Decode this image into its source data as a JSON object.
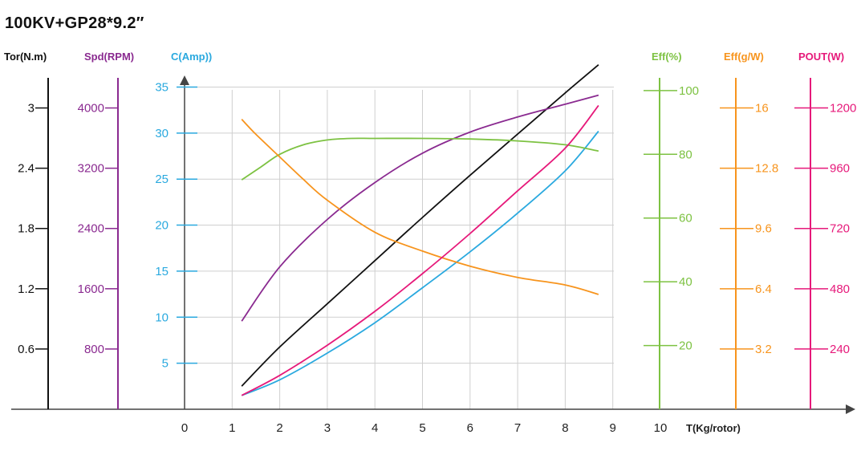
{
  "title": "100KV+GP28*9.2″",
  "chart_data": {
    "type": "line",
    "title": "100KV+GP28*9.2″",
    "xlabel": "T(Kg/rotor)",
    "x_ticks": [
      "0",
      "1",
      "2",
      "3",
      "4",
      "5",
      "6",
      "7",
      "8",
      "9",
      "10"
    ],
    "xlim": [
      0,
      10
    ],
    "grid": true,
    "axes": [
      {
        "key": "tor",
        "label": "Tor(N.m)",
        "color": "#111111",
        "ticks": [
          "0.6",
          "1.2",
          "1.8",
          "2.4",
          "3"
        ],
        "ylim": [
          0,
          3.3
        ]
      },
      {
        "key": "spd",
        "label": "Spd(RPM)",
        "color": "#8a2a90",
        "ticks": [
          "800",
          "1600",
          "2400",
          "3200",
          "4000"
        ],
        "ylim": [
          0,
          4400
        ]
      },
      {
        "key": "c",
        "label": "C(Amp))",
        "color": "#2aa9df",
        "ticks": [
          "5",
          "10",
          "15",
          "20",
          "25",
          "30",
          "35"
        ],
        "ylim": [
          0,
          36
        ]
      },
      {
        "key": "eff",
        "label": "Eff(%)",
        "color": "#7dc242",
        "ticks": [
          "20",
          "40",
          "60",
          "80",
          "100"
        ],
        "ylim": [
          0,
          104
        ]
      },
      {
        "key": "effg",
        "label": "Eff(g/W)",
        "color": "#f7941d",
        "ticks": [
          "3.2",
          "6.4",
          "9.6",
          "12.8",
          "16"
        ],
        "ylim": [
          0,
          17.6
        ]
      },
      {
        "key": "pout",
        "label": "POUT(W)",
        "color": "#e6197a",
        "ticks": [
          "240",
          "480",
          "720",
          "960",
          "1200"
        ],
        "ylim": [
          0,
          1320
        ]
      }
    ],
    "series": [
      {
        "axis": "tor",
        "color": "#111111",
        "x": [
          1.2,
          2,
          3,
          4,
          5,
          6,
          7,
          8,
          8.7
        ],
        "values": [
          0.23,
          0.62,
          1.05,
          1.48,
          1.91,
          2.33,
          2.74,
          3.15,
          3.43
        ]
      },
      {
        "axis": "spd",
        "color": "#8a2a90",
        "x": [
          1.2,
          2,
          3,
          4,
          5,
          6,
          7,
          8,
          8.7
        ],
        "values": [
          1170,
          1890,
          2520,
          3010,
          3400,
          3680,
          3880,
          4050,
          4170
        ]
      },
      {
        "axis": "c",
        "color": "#2aa9df",
        "x": [
          1.2,
          2,
          3,
          4,
          5,
          6,
          7,
          8,
          8.7
        ],
        "values": [
          1.5,
          3.2,
          6.1,
          9.4,
          13.2,
          17.1,
          21.3,
          25.9,
          30.2
        ]
      },
      {
        "axis": "eff",
        "color": "#7dc242",
        "x": [
          1.2,
          1.6,
          2,
          2.5,
          3,
          3.5,
          4,
          5,
          6,
          7,
          8,
          8.7
        ],
        "values": [
          72,
          76,
          80,
          83,
          84.5,
          85,
          85,
          85,
          84.8,
          84.2,
          83,
          81
        ]
      },
      {
        "axis": "effg",
        "color": "#f7941d",
        "x": [
          1.2,
          1.5,
          2,
          2.5,
          3,
          4,
          5,
          6,
          7,
          8,
          8.7
        ],
        "values": [
          15.4,
          14.6,
          13.4,
          12.2,
          11.1,
          9.4,
          8.4,
          7.6,
          7.0,
          6.6,
          6.1
        ]
      },
      {
        "axis": "pout",
        "color": "#e6197a",
        "x": [
          1.2,
          2,
          3,
          4,
          5,
          6,
          7,
          8,
          8.7
        ],
        "values": [
          55,
          135,
          255,
          390,
          540,
          700,
          870,
          1040,
          1210
        ]
      }
    ]
  }
}
